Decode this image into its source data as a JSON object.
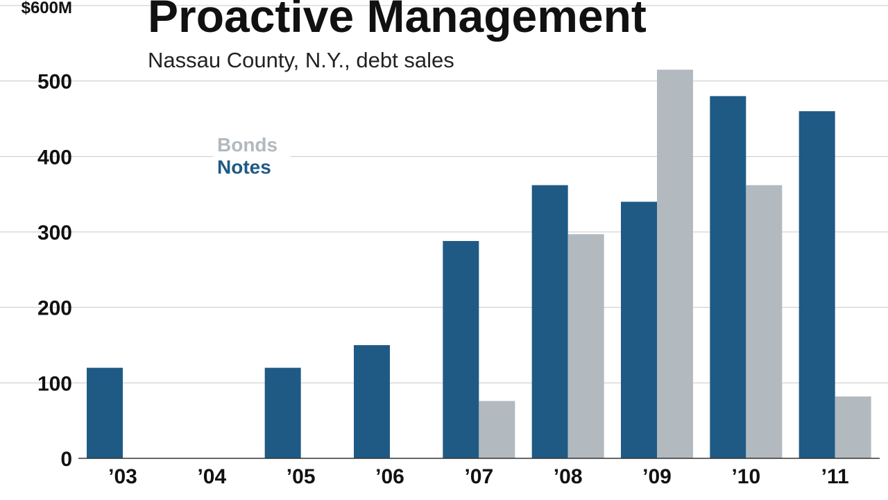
{
  "chart_data": {
    "type": "bar",
    "title": "Proactive Management",
    "subtitle": "Nassau County, N.Y., debt sales",
    "categories": [
      "’03",
      "’04",
      "’05",
      "’06",
      "’07",
      "’08",
      "’09",
      "’10",
      "’11"
    ],
    "series": [
      {
        "name": "Notes",
        "color": "#1f5a85",
        "values": [
          120,
          0,
          120,
          150,
          288,
          362,
          340,
          480,
          460
        ]
      },
      {
        "name": "Bonds",
        "color": "#b2b9bf",
        "values": [
          0,
          0,
          0,
          0,
          76,
          297,
          515,
          362,
          82
        ]
      }
    ],
    "yticks": [
      {
        "value": 0,
        "label": "0"
      },
      {
        "value": 100,
        "label": "100"
      },
      {
        "value": 200,
        "label": "200"
      },
      {
        "value": 300,
        "label": "300"
      },
      {
        "value": 400,
        "label": "400"
      },
      {
        "value": 500,
        "label": "500"
      },
      {
        "value": 600,
        "label": "$600M"
      }
    ],
    "ylim": [
      0,
      600
    ],
    "xlabel": "",
    "ylabel": "",
    "grid": true,
    "legend": [
      {
        "name": "Bonds",
        "color": "#b2b9bf"
      },
      {
        "name": "Notes",
        "color": "#1f5a85"
      }
    ],
    "legend_position": "top-left"
  }
}
